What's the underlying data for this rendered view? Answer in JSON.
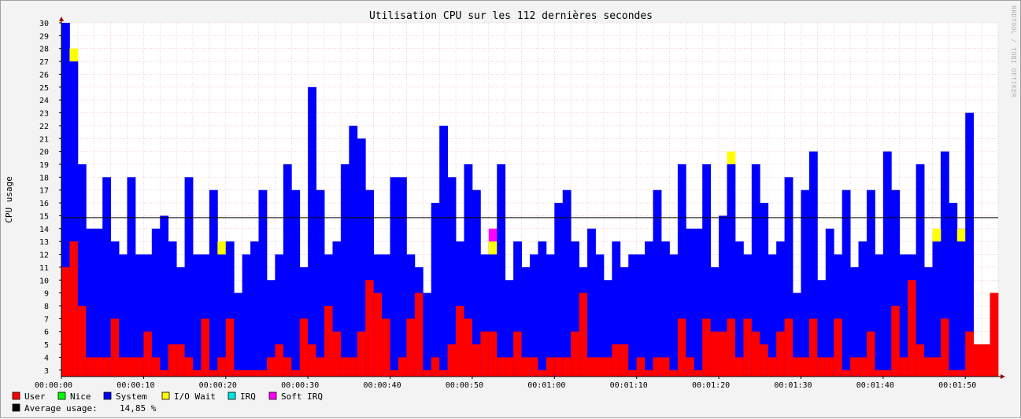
{
  "chart_data": {
    "type": "stacked-bar",
    "title": "Utilisation CPU sur les 112 dernières secondes",
    "ylabel": "CPU usage",
    "watermark": "RRDTOOL / TOBI OETIKER",
    "ylim": [
      2.5,
      30
    ],
    "yticks": [
      3,
      4,
      5,
      6,
      7,
      8,
      9,
      10,
      11,
      12,
      13,
      14,
      15,
      16,
      17,
      18,
      19,
      20,
      21,
      22,
      23,
      24,
      25,
      26,
      27,
      28,
      29,
      30
    ],
    "xticks": [
      "00:00:00",
      "00:00:10",
      "00:00:20",
      "00:00:30",
      "00:00:40",
      "00:00:50",
      "00:01:00",
      "00:01:10",
      "00:01:20",
      "00:01:30",
      "00:01:40",
      "00:01:50"
    ],
    "xtick_seconds": [
      0,
      10,
      20,
      30,
      40,
      50,
      60,
      70,
      80,
      90,
      100,
      110
    ],
    "grid": true,
    "average_line": 14.85,
    "series": [
      {
        "name": "User",
        "color": "#ff0000",
        "values": [
          11,
          13,
          8,
          4,
          4,
          4,
          7,
          4,
          4,
          4,
          6,
          4,
          3,
          5,
          5,
          4,
          3,
          7,
          3,
          4,
          7,
          3,
          3,
          3,
          3,
          4,
          5,
          4,
          3,
          7,
          5,
          4,
          8,
          6,
          4,
          4,
          6,
          10,
          9,
          7,
          3,
          4,
          7,
          9,
          3,
          4,
          3,
          5,
          8,
          7,
          5,
          6,
          6,
          4,
          4,
          6,
          4,
          4,
          3,
          4,
          4,
          4,
          6,
          9,
          4,
          4,
          4,
          5,
          5,
          3,
          4,
          3,
          4,
          4,
          3,
          7,
          4,
          3,
          7,
          6,
          6,
          7,
          4,
          7,
          6,
          5,
          4,
          6,
          7,
          4,
          4,
          7,
          4,
          4,
          7,
          3,
          4,
          4,
          6,
          3,
          3,
          8,
          4,
          10,
          5,
          4,
          4,
          7,
          3,
          3,
          6,
          5,
          5,
          9
        ]
      },
      {
        "name": "Nice",
        "color": "#00ff00",
        "values": [
          0,
          0,
          0,
          0,
          0,
          0,
          0,
          0,
          0,
          0,
          0,
          0,
          0,
          0,
          0,
          0,
          0,
          0,
          0,
          0,
          0,
          0,
          0,
          0,
          0,
          0,
          0,
          0,
          0,
          0,
          0,
          0,
          0,
          0,
          0,
          0,
          0,
          0,
          0,
          0,
          0,
          0,
          0,
          0,
          0,
          0,
          0,
          0,
          0,
          0,
          0,
          0,
          0,
          0,
          0,
          0,
          0,
          0,
          0,
          0,
          0,
          0,
          0,
          0,
          0,
          0,
          0,
          0,
          0,
          0,
          0,
          0,
          0,
          0,
          0,
          0,
          0,
          0,
          0,
          0,
          0,
          0,
          0,
          0,
          0,
          0,
          0,
          0,
          0,
          0,
          0,
          0,
          0,
          0,
          0,
          0,
          0,
          0,
          0,
          0,
          0,
          0,
          0,
          0,
          0,
          0,
          0,
          0,
          0,
          0,
          0,
          0,
          0
        ]
      },
      {
        "name": "System",
        "color": "#0000ff",
        "values": [
          30,
          27,
          19,
          14,
          14,
          18,
          13,
          12,
          18,
          12,
          12,
          14,
          15,
          13,
          11,
          18,
          12,
          12,
          17,
          12,
          13,
          9,
          12,
          13,
          17,
          10,
          12,
          19,
          17,
          11,
          25,
          17,
          12,
          13,
          19,
          22,
          21,
          17,
          12,
          12,
          18,
          18,
          12,
          11,
          9,
          16,
          22,
          18,
          13,
          19,
          17,
          12,
          13,
          19,
          10,
          13,
          11,
          12,
          13,
          12,
          16,
          17,
          13,
          11,
          14,
          12,
          10,
          13,
          11,
          12,
          12,
          13,
          17,
          13,
          12,
          19,
          14,
          14,
          19,
          11,
          15,
          19,
          13,
          12,
          19,
          16,
          12,
          13,
          18,
          9,
          17,
          20,
          10,
          14,
          12,
          17,
          11,
          13,
          17,
          12,
          20,
          17,
          12,
          12,
          19,
          11,
          13,
          20,
          16,
          14,
          23
        ]
      },
      {
        "name": "I/O Wait",
        "color": "#ffff00",
        "values": [
          0,
          28,
          0,
          0,
          0,
          0,
          0,
          0,
          0,
          0,
          0,
          0,
          0,
          0,
          0,
          0,
          0,
          0,
          0,
          13,
          0,
          0,
          0,
          0,
          0,
          0,
          0,
          0,
          0,
          0,
          0,
          0,
          0,
          0,
          0,
          0,
          0,
          0,
          0,
          0,
          0,
          0,
          0,
          0,
          0,
          0,
          0,
          0,
          0,
          0,
          0,
          0,
          13,
          0,
          0,
          0,
          0,
          0,
          0,
          0,
          0,
          0,
          0,
          0,
          0,
          0,
          0,
          0,
          0,
          0,
          0,
          0,
          0,
          0,
          0,
          0,
          0,
          0,
          0,
          0,
          0,
          0,
          0,
          0,
          0,
          0,
          0,
          0,
          0,
          0,
          0,
          0,
          0,
          0,
          0,
          0,
          0,
          0,
          0,
          0,
          0,
          0,
          0,
          0,
          0,
          0,
          0,
          0,
          0,
          14,
          0,
          0,
          0,
          0
        ]
      },
      {
        "name": "IRQ",
        "color": "#00e5e5",
        "values": []
      },
      {
        "name": "Soft IRQ",
        "color": "#ff00ff",
        "values": [
          0,
          0,
          0,
          0,
          0,
          0,
          0,
          0,
          0,
          0,
          0,
          0,
          0,
          0,
          0,
          0,
          0,
          0,
          0,
          0,
          0,
          0,
          0,
          0,
          0,
          0,
          0,
          0,
          0,
          0,
          0,
          0,
          0,
          0,
          0,
          0,
          0,
          0,
          0,
          0,
          0,
          0,
          0,
          0,
          0,
          0,
          0,
          0,
          0,
          0,
          0,
          0,
          14,
          0,
          0,
          0,
          0,
          0,
          0,
          0,
          0,
          0,
          0,
          0,
          0,
          0,
          0,
          0,
          0,
          0,
          0,
          0,
          0,
          0,
          0,
          0,
          0,
          0,
          0,
          0,
          0,
          0,
          0,
          0,
          0,
          0,
          0,
          0,
          0,
          0,
          0,
          0,
          0,
          0,
          0,
          0,
          0,
          0,
          0,
          0,
          0,
          0,
          0,
          0,
          0,
          0,
          0,
          0,
          0,
          0,
          0,
          0,
          0
        ]
      }
    ],
    "iowait_top_overrides": {
      "1": 28,
      "19": 13,
      "52": 13,
      "81": 20,
      "106": 14
    },
    "legend": {
      "placement": "bottom-left",
      "items": [
        {
          "name": "User",
          "color": "#ff0000"
        },
        {
          "name": "Nice",
          "color": "#00ff00"
        },
        {
          "name": "System",
          "color": "#0000ff"
        },
        {
          "name": "I/O Wait",
          "color": "#ffff00"
        },
        {
          "name": "IRQ",
          "color": "#00e5e5"
        },
        {
          "name": "Soft IRQ",
          "color": "#ff00ff"
        }
      ],
      "average": {
        "label": "Average usage:",
        "value": "14,85 %",
        "color": "#000000"
      }
    }
  }
}
